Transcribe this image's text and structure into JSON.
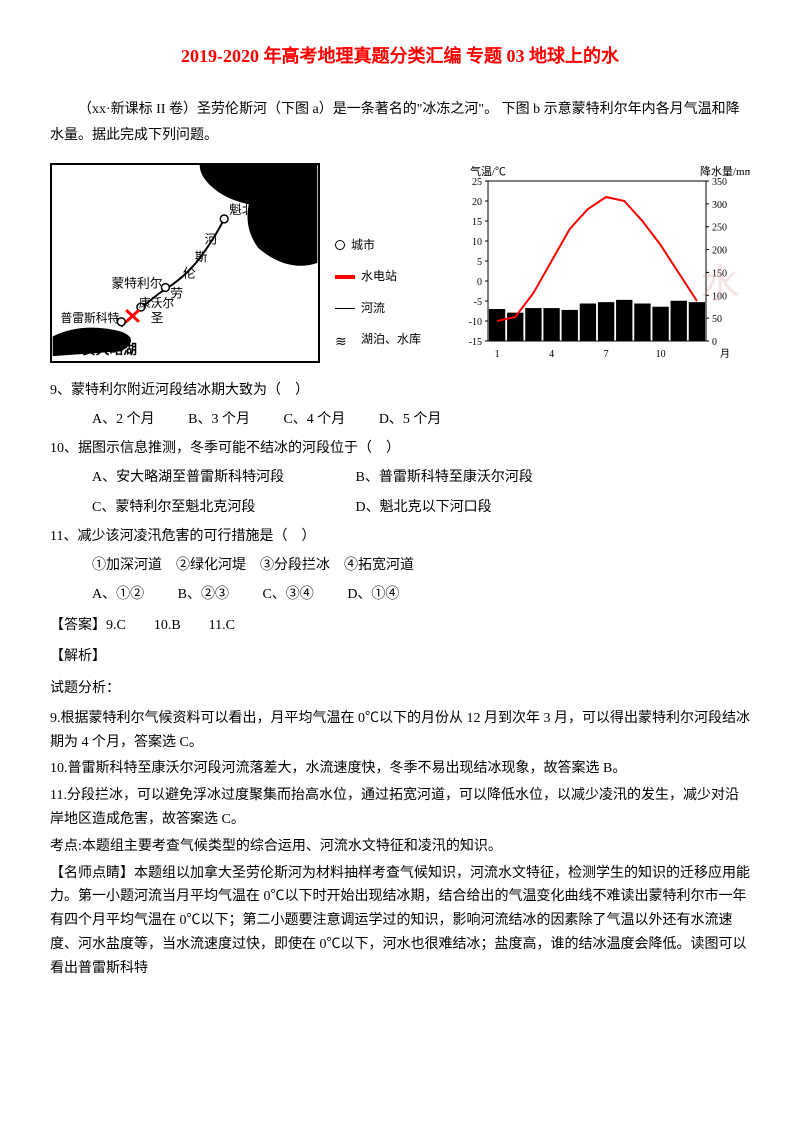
{
  "title": "2019-2020 年高考地理真题分类汇编 专题 03 地球上的水",
  "intro": "（xx·新课标 II 卷）圣劳伦斯河（下图 a）是一条著名的\"冰冻之河\"。 下图 b 示意蒙特利尔年内各月气温和降水量。据此完成下列问题。",
  "map": {
    "labels": {
      "quebec": "魁北克",
      "montreal": "蒙特利尔",
      "cornwall": "康沃尔",
      "prescott": "普雷斯科特",
      "ontario": "安大略湖",
      "river_chars": [
        "河",
        "斯",
        "伦",
        "劳",
        "圣"
      ]
    },
    "border_color": "#000000",
    "river_color": "#000000",
    "lake_fill": "#000000",
    "hydro_color": "#ff0000"
  },
  "legend": {
    "city": "城市",
    "hydro": "水电站",
    "river": "河流",
    "lake": "湖泊、水库"
  },
  "chart": {
    "type": "combo-line-bar",
    "y_left_label": "气温/℃",
    "y_right_label": "降水量/mm",
    "x_ticks": [
      "1",
      "4",
      "7",
      "10",
      "月"
    ],
    "y_left_ticks": [
      -15,
      -10,
      -5,
      0,
      5,
      10,
      15,
      20,
      25
    ],
    "y_right_ticks": [
      0,
      50,
      100,
      150,
      200,
      250,
      300,
      350
    ],
    "temp_values": [
      -10,
      -9,
      -3,
      5,
      13,
      18,
      21,
      20,
      15,
      9,
      2,
      -5
    ],
    "precip_values": [
      70,
      62,
      72,
      72,
      68,
      82,
      85,
      90,
      82,
      75,
      88,
      85
    ],
    "line_color": "#ff0000",
    "bar_color": "#000000",
    "axis_color": "#000000",
    "bg_color": "#ffffff",
    "line_width": 2,
    "watermark": "水"
  },
  "q9": {
    "stem": "9、蒙特利尔附近河段结冰期大致为（　）",
    "opts": {
      "A": "A、2 个月",
      "B": "B、3 个月",
      "C": "C、4 个月",
      "D": "D、5 个月"
    }
  },
  "q10": {
    "stem": "10、据图示信息推测，冬季可能不结冰的河段位于（　）",
    "opts": {
      "A": "A、安大略湖至普雷斯科特河段",
      "B": "B、普雷斯科特至康沃尔河段",
      "C": "C、蒙特利尔至魁北克河段",
      "D": "D、魁北克以下河口段"
    }
  },
  "q11": {
    "stem": "11、减少该河凌汛危害的可行措施是（　）",
    "items": "①加深河道　②绿化河堤　③分段拦冰　④拓宽河道",
    "opts": {
      "A": "A、①②",
      "B": "B、②③",
      "C": "C、③④",
      "D": "D、①④"
    }
  },
  "answer": "【答案】9.C　　10.B　　11.C",
  "analysis_label": "【解析】",
  "analysis_sub": "试题分析：",
  "expl9": "9.根据蒙特利尔气候资料可以看出，月平均气温在 0℃以下的月份从 12 月到次年 3 月，可以得出蒙特利尔河段结冰期为 4 个月，答案选 C。",
  "expl10": "10.普雷斯科特至康沃尔河段河流落差大，水流速度快，冬季不易出现结冰现象，故答案选 B。",
  "expl11": "11.分段拦冰，可以避免浮冰过度聚集而抬高水位，通过拓宽河道，可以降低水位，以减少凌汛的发生，减少对沿岸地区造成危害，故答案选 C。",
  "kaodian": "考点:本题组主要考查气候类型的综合运用、河流水文特征和凌汛的知识。",
  "mingshi": "【名师点睛】本题组以加拿大圣劳伦斯河为材料抽样考查气候知识，河流水文特征，检测学生的知识的迁移应用能力。第一小题河流当月平均气温在 0℃以下时开始出现结冰期，结合给出的气温变化曲线不难读出蒙特利尔市一年有四个月平均气温在 0℃以下；第二小题要注意调运学过的知识，影响河流结冰的因素除了气温以外还有水流速度、河水盐度等，当水流速度过快，即使在 0℃以下，河水也很难结冰；盐度高，谁的结冰温度会降低。读图可以看出普雷斯科特"
}
